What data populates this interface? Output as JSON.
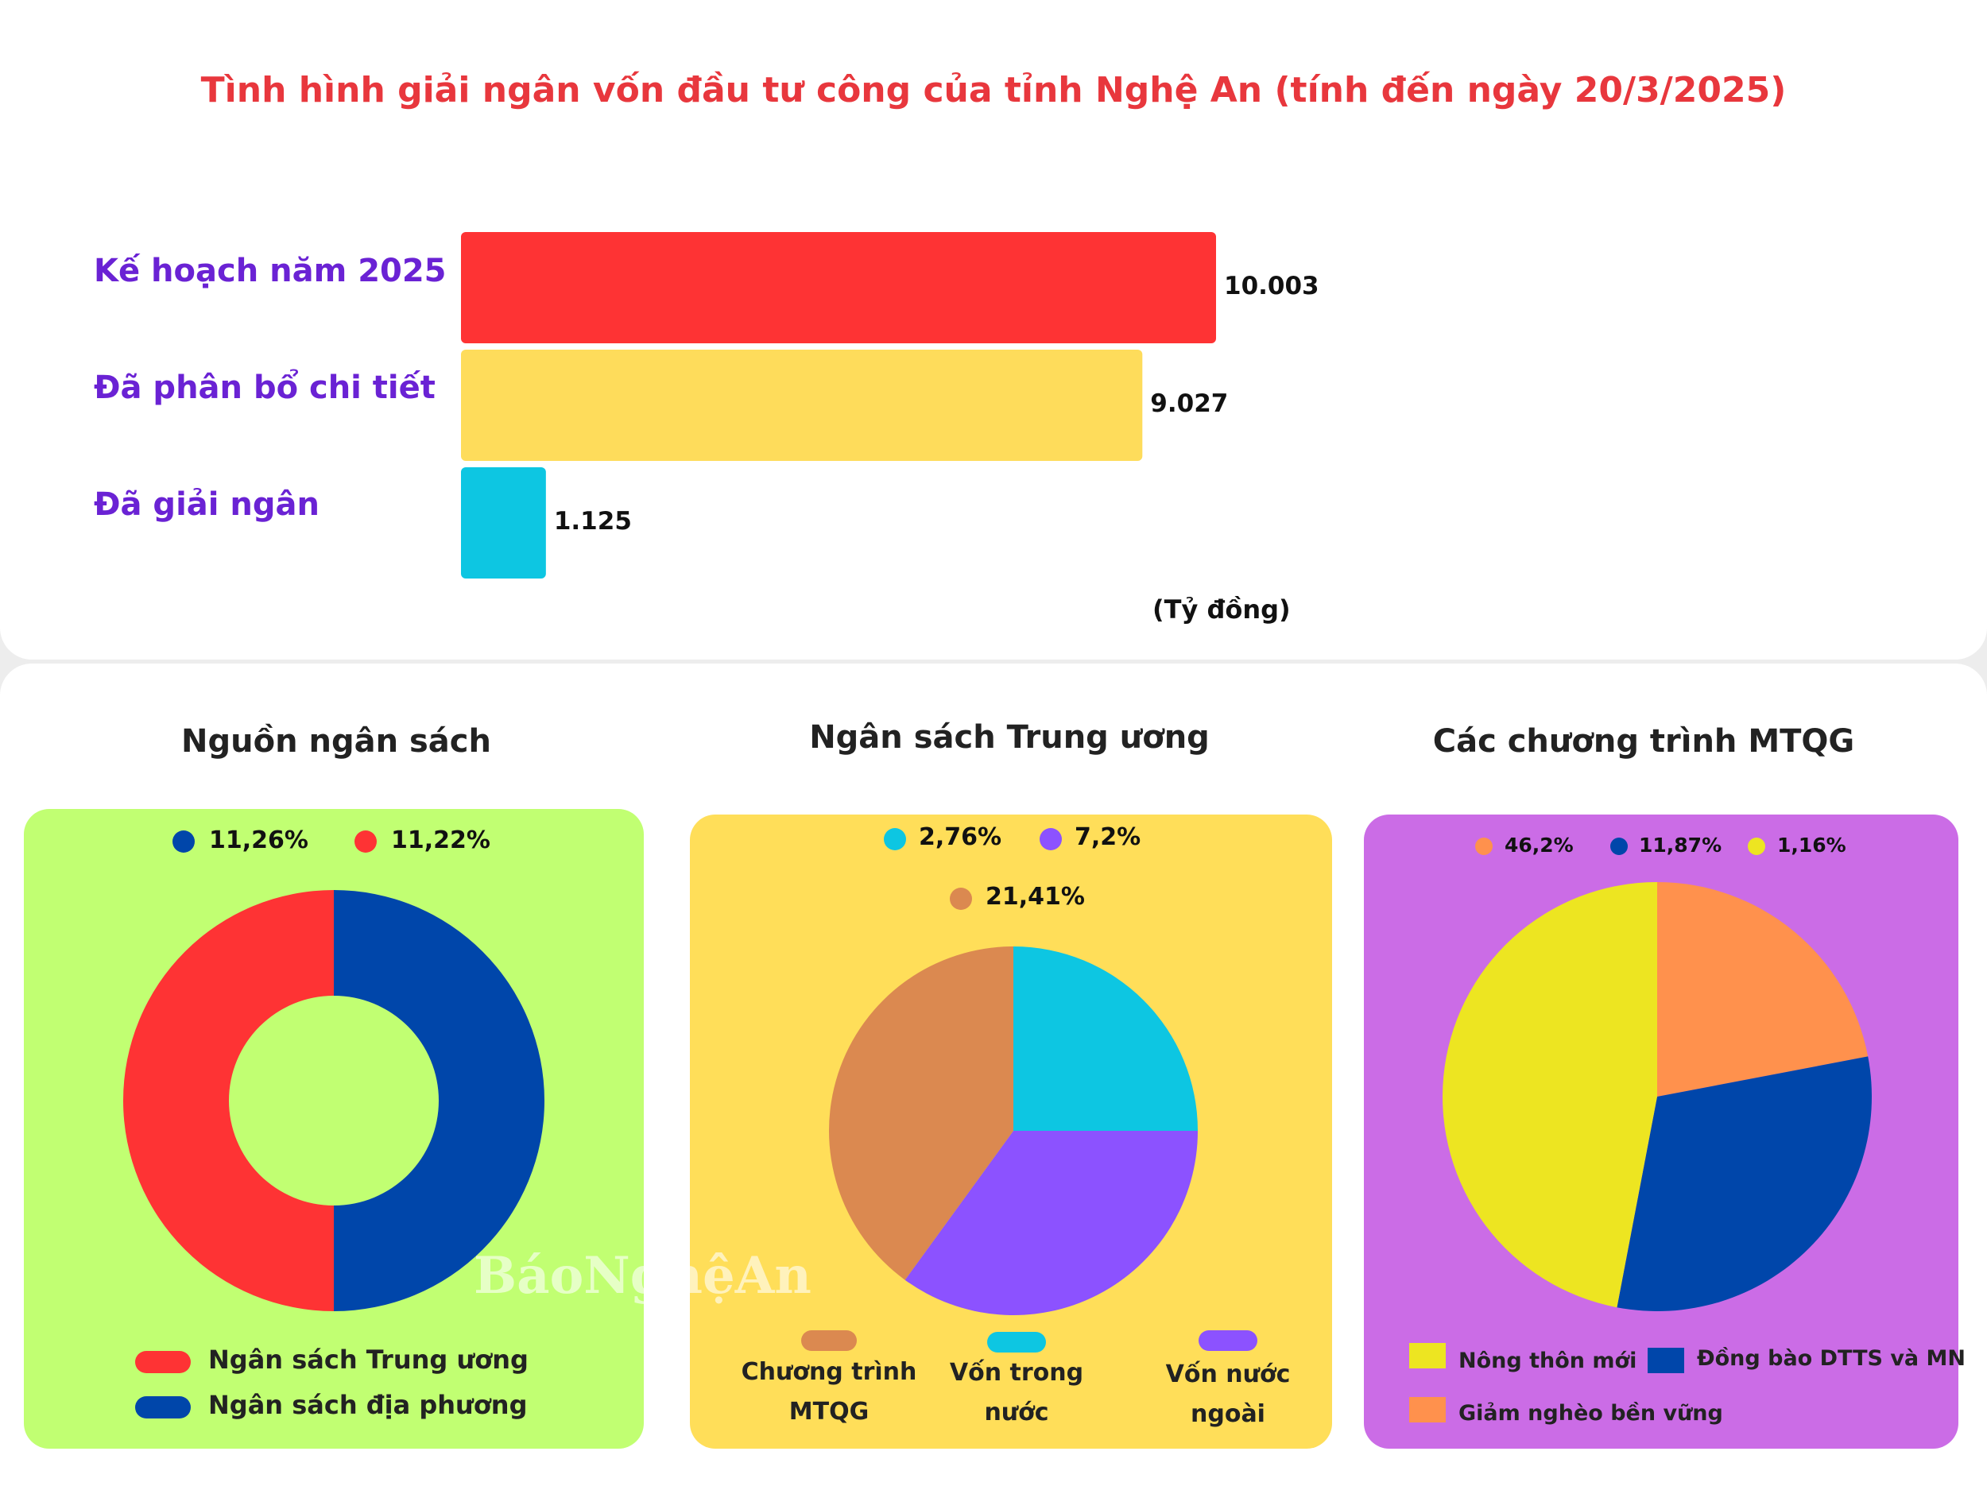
{
  "title": "Tình hình giải ngân vốn đầu tư công của tỉnh Nghệ An (tính đến ngày 20/3/2025)",
  "chart_data": [
    {
      "type": "bar",
      "orientation": "horizontal",
      "categories": [
        "Kế hoạch năm 2025",
        "Đã phân bổ chi tiết",
        "Đã giải ngân"
      ],
      "values": [
        10003,
        9027,
        1125
      ],
      "value_labels": [
        "10.003",
        "9.027",
        "1.125"
      ],
      "colors": [
        "#fe3334",
        "#fedc5b",
        "#0dc6e2"
      ],
      "unit_label": "(Tỷ đồng)",
      "grid": false
    },
    {
      "type": "pie",
      "variant": "donut",
      "title": "Nguồn ngân sách",
      "slices": [
        {
          "label": "Ngân sách Trung ương",
          "value": 50,
          "color": "#fe3334"
        },
        {
          "label": "Ngân sách địa phương",
          "value": 50,
          "color": "#0046aa"
        }
      ],
      "annotations": [
        {
          "text": "11,26%",
          "color": "#0046aa"
        },
        {
          "text": "11,22%",
          "color": "#fe3334"
        }
      ],
      "legend": [
        {
          "label": "Ngân sách Trung ương",
          "color": "#fe3334"
        },
        {
          "label": "Ngân sách địa phương",
          "color": "#0046aa"
        }
      ],
      "legend_position": "bottom"
    },
    {
      "type": "pie",
      "title": "Ngân sách Trung ương",
      "slices": [
        {
          "label": "Vốn trong nước",
          "value": 25,
          "color": "#0dc6e2"
        },
        {
          "label": "Vốn nước ngoài",
          "value": 35,
          "color": "#8c52ff"
        },
        {
          "label": "Chương trình MTQG",
          "value": 40,
          "color": "#db8950"
        }
      ],
      "annotations": [
        {
          "text": "2,76%",
          "color": "#0dc6e2"
        },
        {
          "text": "7,2%",
          "color": "#8c52ff"
        },
        {
          "text": "21,41%",
          "color": "#db8950"
        }
      ],
      "legend": [
        {
          "label": "Chương trình MTQG",
          "line1": "Chương trình",
          "line2": "MTQG",
          "color": "#db8950"
        },
        {
          "label": "Vốn trong nước",
          "line1": "Vốn trong",
          "line2": "nước",
          "color": "#0dc6e2"
        },
        {
          "label": "Vốn nước ngoài",
          "line1": "Vốn nước",
          "line2": "ngoài",
          "color": "#8c52ff"
        }
      ],
      "legend_position": "bottom"
    },
    {
      "type": "pie",
      "title": "Các chương trình MTQG",
      "slices": [
        {
          "label": "Giảm nghèo bền vững",
          "value": 22,
          "color": "#ff914d"
        },
        {
          "label": "Đồng bào DTTS và MN",
          "value": 31,
          "color": "#0046aa"
        },
        {
          "label": "Nông thôn mới",
          "value": 47,
          "color": "#ede521"
        }
      ],
      "annotations": [
        {
          "text": "46,2%",
          "color": "#ff914d"
        },
        {
          "text": "11,87%",
          "color": "#0046aa"
        },
        {
          "text": "1,16%",
          "color": "#ede521"
        }
      ],
      "legend": [
        {
          "label": "Nông thôn mới",
          "color": "#ede521"
        },
        {
          "label": "Đồng bào DTTS và MN",
          "color": "#0046aa"
        },
        {
          "label": "Giảm nghèo bền vững",
          "color": "#ff914d"
        }
      ],
      "legend_position": "bottom"
    }
  ],
  "watermark": "BáoNghệAn",
  "colors": {
    "panel1": "#c1ff72",
    "panel2": "#ffde59",
    "panel3": "#cb6ce6",
    "title": "#e8373d",
    "category_label": "#6a22d4"
  }
}
